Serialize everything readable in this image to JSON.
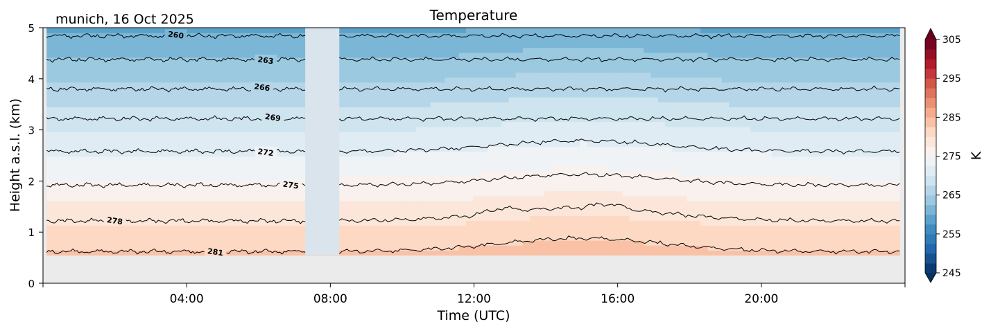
{
  "chart_data": {
    "type": "heatmap",
    "title": "Temperature",
    "subtitle": "munich, 16 Oct 2025",
    "xlabel": "Time (UTC)",
    "ylabel": "Height a.s.l. (km)",
    "x_units": "hours UTC",
    "xlim": [
      0,
      24
    ],
    "ylim": [
      0,
      5
    ],
    "x_ticks": [
      {
        "value": 4,
        "label": "04:00"
      },
      {
        "value": 8,
        "label": "08:00"
      },
      {
        "value": 12,
        "label": "12:00"
      },
      {
        "value": 16,
        "label": "16:00"
      },
      {
        "value": 20,
        "label": "20:00"
      }
    ],
    "y_ticks": [
      {
        "value": 0,
        "label": "0"
      },
      {
        "value": 1,
        "label": "1"
      },
      {
        "value": 2,
        "label": "2"
      },
      {
        "value": 3,
        "label": "3"
      },
      {
        "value": 4,
        "label": "4"
      },
      {
        "value": 5,
        "label": "5"
      }
    ],
    "colorbar": {
      "label": "K",
      "range": [
        245,
        305
      ],
      "step": 2.5,
      "colormap": "RdBu_r",
      "extend": "both",
      "ticks": [
        {
          "value": 245,
          "label": "245"
        },
        {
          "value": 255,
          "label": "255"
        },
        {
          "value": 265,
          "label": "265"
        },
        {
          "value": 275,
          "label": "275"
        },
        {
          "value": 285,
          "label": "285"
        },
        {
          "value": 295,
          "label": "295"
        },
        {
          "value": 305,
          "label": "305"
        }
      ]
    },
    "data_region": {
      "x_start": 0.1,
      "x_end": 23.85,
      "height_min_km": 0.55
    },
    "missing_data_gap": {
      "start_hour": 7.3,
      "end_hour": 8.25
    },
    "surface_temperature_K": 283.2,
    "lapse_rate_K_per_km": 5.3,
    "isotherms": [
      {
        "value": 281,
        "label": "281",
        "label_hour": 4.8,
        "base_height_km": 0.62
      },
      {
        "value": 278,
        "label": "278",
        "label_hour": 2.0,
        "base_height_km": 1.22
      },
      {
        "value": 275,
        "label": "275",
        "label_hour": 6.9,
        "base_height_km": 1.92
      },
      {
        "value": 272,
        "label": "272",
        "label_hour": 6.2,
        "base_height_km": 2.58
      },
      {
        "value": 269,
        "label": "269",
        "label_hour": 6.4,
        "base_height_km": 3.22
      },
      {
        "value": 266,
        "label": "266",
        "label_hour": 6.1,
        "base_height_km": 3.8
      },
      {
        "value": 263,
        "label": "263",
        "label_hour": 6.2,
        "base_height_km": 4.38
      },
      {
        "value": 260,
        "label": "260",
        "label_hour": 3.7,
        "base_height_km": 4.84
      }
    ],
    "diurnal_bump_km": {
      "peak_hour": 15.0,
      "width_hours": 3.2,
      "amplitude_km": 0.26
    }
  }
}
